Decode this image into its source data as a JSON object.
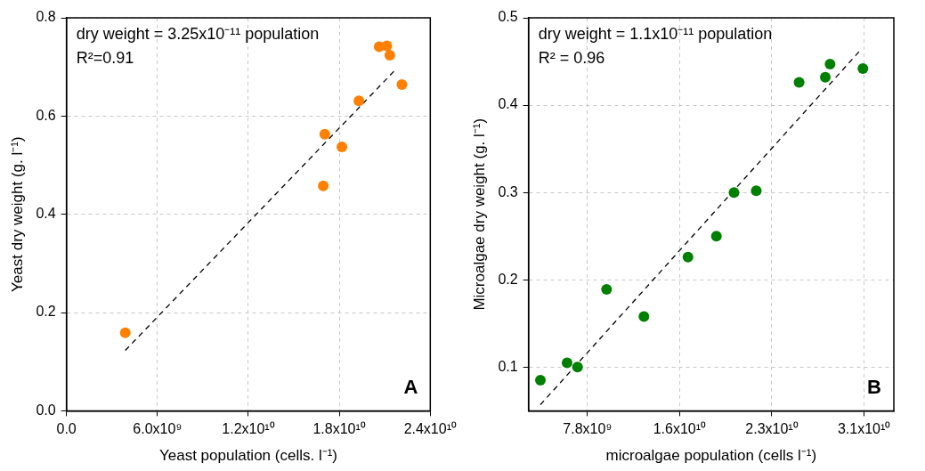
{
  "chart_data": [
    {
      "type": "scatter",
      "xlabel": "Yeast population (cells. l⁻¹)",
      "ylabel": "Yeast dry weight (g. l⁻¹)",
      "annotations": [
        "dry weight = 3.25x10⁻¹¹ population",
        "R²=0.91",
        "A"
      ],
      "xlim": [
        0,
        24000000000
      ],
      "ylim": [
        0,
        0.8
      ],
      "xticks": [
        {
          "value": 0,
          "label": "0.0"
        },
        {
          "value": 6000000000,
          "label": "6.0x10⁹"
        },
        {
          "value": 12000000000,
          "label": "1.2x10¹⁰"
        },
        {
          "value": 18000000000,
          "label": "1.8x10¹⁰"
        },
        {
          "value": 24000000000,
          "label": "2.4x10¹⁰"
        }
      ],
      "yticks": [
        {
          "value": 0,
          "label": "0.0"
        },
        0.2,
        0.4,
        0.6,
        0.8
      ],
      "grid": true,
      "legend": false,
      "marker": "circle",
      "series": [
        {
          "type": "scatter",
          "color": "#ff8000",
          "x": [
            3880000000,
            16940000000,
            17040000000,
            18170000000,
            19290000000,
            20630000000,
            21130000000,
            21330000000,
            22130000000
          ],
          "values": [
            0.159,
            0.458,
            0.563,
            0.537,
            0.631,
            0.741,
            0.743,
            0.724,
            0.664
          ]
        },
        {
          "type": "line",
          "color": "#000000",
          "x": [
            3880000000,
            21630000000
          ],
          "values": [
            0.123,
            0.692
          ],
          "line_style": "dashed",
          "marker": "none"
        }
      ]
    },
    {
      "type": "scatter",
      "xlabel": "microalgae population (cells l⁻¹)",
      "ylabel": "Microalgae dry weight (g. l⁻¹)",
      "annotations": [
        "dry weight = 1.1x10⁻¹¹ population",
        "R² = 0.96",
        "B"
      ],
      "xlim": [
        2800000000,
        33500000000
      ],
      "ylim": [
        0.05,
        0.5
      ],
      "xticks": [
        {
          "value": 7750000000,
          "label": "7.8x10⁹"
        },
        {
          "value": 15500000000,
          "label": "1.6x10¹⁰"
        },
        {
          "value": 23250000000,
          "label": "2.3x10¹⁰"
        },
        {
          "value": 31000000000,
          "label": "3.1x10¹⁰"
        }
      ],
      "yticks": [
        0.1,
        0.2,
        0.3,
        0.4,
        0.5
      ],
      "grid": true,
      "legend": false,
      "marker": "circle",
      "series": [
        {
          "type": "scatter",
          "color": "#008000",
          "x": [
            3800000000,
            6040000000,
            6920000000,
            9360000000,
            12500000000,
            16200000000,
            18590000000,
            20070000000,
            21940000000,
            25540000000,
            27740000000,
            28140000000,
            30900000000
          ],
          "values": [
            0.085,
            0.105,
            0.1,
            0.189,
            0.158,
            0.226,
            0.25,
            0.3,
            0.302,
            0.426,
            0.432,
            0.447,
            0.442
          ]
        },
        {
          "type": "line",
          "color": "#000000",
          "x": [
            3800000000,
            30630000000
          ],
          "values": [
            0.057,
            0.462
          ],
          "line_style": "dashed",
          "marker": "none"
        }
      ]
    }
  ]
}
